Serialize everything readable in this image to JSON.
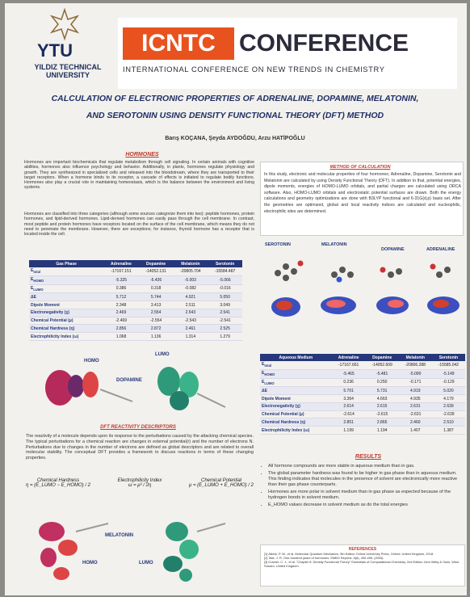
{
  "header": {
    "logo_text": "YTU",
    "university": "YILDIZ TECHNICAL UNIVERSITY",
    "conference_short": "ICNTC",
    "conference_word": "CONFERENCE",
    "conference_full": "INTERNATIONAL CONFERENCE ON NEW TRENDS IN CHEMISTRY"
  },
  "title": "CALCULATION OF ELECTRONIC PROPERTIES OF ADRENALINE, DOPAMINE, MELATONIN, AND SEROTONIN USING DENSITY FUNCTIONAL THEORY (DFT) METHOD",
  "authors": "Barış KOÇANA, Şeyda AYDOĞDU, Arzu HATİPOĞLU",
  "hormones": {
    "heading": "HORMONES",
    "paragraphs": [
      "Hormones are important biochemicals that regulate metabolism through cell signaling. In certain animals with cognitive abilities, hormones also influence psychology and behavior. Additionally, in plants, hormones regulate physiology and growth. They are synthesized in specialized cells and released into the bloodstream, where they are transported to their target receptors. When a hormone binds to its receptor, a cascade of effects is initiated to regulate bodily functions. Hormones also play a crucial role in maintaining homeostasis, which is the balance between the environment and living systems.",
      "Hormones are classified into three categories (although some sources categorize them into two): peptide hormones, protein hormones, and lipid-derived hormones. Lipid-derived hormones can easily pass through the cell membrane. In contrast, most peptide and protein hormones have receptors located on the surface of the cell membrane, which means they do not need to penetrate the membrane. However, there are exceptions; for instance, thyroid hormone has a receptor that is located inside the cell."
    ]
  },
  "method": {
    "heading": "METHOD OF CALCULATION",
    "text": "In this study, electronic and molecular properties of four hormones; Adrenaline, Dopamine, Serotonin and Melatonin are calculated by using Density Functional Theory (DFT). In addition to that, potential energies, dipole moments, energies of HOMO-LUMO orbitals, and partial charges are calculated using ORCA software. Also, HOMO-LUMO orbitals and electrostatic potential surfaces are drawn. Both the energy calculations and geometry optimizations are done with B3LYP functional and 6-31G(d,p) basis set. After the geometries are optimized, global and local reactivity indices are calculated and nucleophilic, electrophilic sites are determined."
  },
  "molecules": [
    "SEROTONIN",
    "MELATONIN",
    "DOPAMINE",
    "ADRENALINE"
  ],
  "gas_table": {
    "header": [
      "Gas Phase",
      "Adrenaline",
      "Dopamine",
      "Melatonin",
      "Serotonin"
    ],
    "rows": [
      {
        "label": "E",
        "sub": "total",
        "cells": [
          "-17167.151",
          "-14052.131",
          "-20805.704",
          "-15584.487"
        ]
      },
      {
        "label": "E",
        "sub": "HOMO",
        "cells": [
          "-5.325",
          "-5.426",
          "-5.003",
          "-5.066"
        ]
      },
      {
        "label": "E",
        "sub": "LUMO",
        "cells": [
          "0.386",
          "0.318",
          "-0.082",
          "-0.016"
        ]
      },
      {
        "label": "ΔE",
        "cells": [
          "5.712",
          "5.744",
          "4.921",
          "5.050"
        ]
      },
      {
        "label": "Dipole Moment",
        "cells": [
          "2.348",
          "3.413",
          "2.511",
          "3.049"
        ]
      },
      {
        "label": "Electronegativity (χ)",
        "cells": [
          "2.469",
          "2.554",
          "2.543",
          "2.541"
        ]
      },
      {
        "label": "Chemical Potential (μ)",
        "cells": [
          "-2.469",
          "-2.554",
          "-2.543",
          "-2.541"
        ]
      },
      {
        "label": "Chemical Hardness (η)",
        "cells": [
          "2.856",
          "2.872",
          "2.461",
          "2.525"
        ]
      },
      {
        "label": "Electrophilicity Index (ω)",
        "cells": [
          "1.068",
          "1.136",
          "1.314",
          "1.279"
        ]
      }
    ]
  },
  "aqueous_table": {
    "header": [
      "Aqueous Medium",
      "Adrenaline",
      "Dopamine",
      "Melatonin",
      "Serotonin"
    ],
    "rows": [
      {
        "label": "E",
        "sub": "total",
        "cells": [
          "-17167.661",
          "-14052.609",
          "-20806.288",
          "-15585.042"
        ]
      },
      {
        "label": "E",
        "sub": "HOMO",
        "cells": [
          "-5.465",
          "-5.481",
          "-5.090",
          "-5.149"
        ]
      },
      {
        "label": "E",
        "sub": "LUMO",
        "cells": [
          "0.236",
          "0.250",
          "-0.171",
          "-0.129"
        ]
      },
      {
        "label": "ΔE",
        "cells": [
          "5.701",
          "5.731",
          "4.919",
          "5.020"
        ]
      },
      {
        "label": "Dipole Moment",
        "cells": [
          "3.364",
          "4.663",
          "4.935",
          "4.179"
        ]
      },
      {
        "label": "Electronegativity (χ)",
        "cells": [
          "2.614",
          "2.615",
          "2.631",
          "2.639"
        ]
      },
      {
        "label": "Chemical Potential (μ)",
        "cells": [
          "-2.614",
          "-2.615",
          "-2.631",
          "-2.639"
        ]
      },
      {
        "label": "Chemical Hardness (η)",
        "cells": [
          "2.851",
          "2.865",
          "2.460",
          "2.510"
        ]
      },
      {
        "label": "Electrophilicity Index (ω)",
        "cells": [
          "1.199",
          "1.194",
          "1.407",
          "1.387"
        ]
      }
    ]
  },
  "orbitals_top": {
    "homo": "HOMO",
    "molecule": "DOPAMINE",
    "lumo": "LUMO"
  },
  "orbitals_bottom": {
    "homo": "HOMO",
    "molecule": "MELATONIN",
    "lumo": "LUMO"
  },
  "dft": {
    "heading": "DFT REACTIVITY DESCRIPTORS",
    "text": "The reactivity of a molecule depends upon its response to the perturbations caused by the attacking chemical species. The typical perturbations for a chemical reaction are changes in external potential(r) and the number of electrons N. Perturbations due to changes in the number of electrons are defined as global descriptors and are related to overall molecular stability. The conceptual DFT provides a framework to discuss reactions in terms of these changing properties.",
    "formulas": [
      {
        "name": "Chemical Hardness",
        "formula": "η = (E_LUMO − E_HOMO) / 2"
      },
      {
        "name": "Electrophilicity Index",
        "formula": "ω = μ² / 2η"
      },
      {
        "name": "Chemical Potential",
        "formula": "μ = (E_LUMO + E_HOMO) / 2"
      }
    ]
  },
  "results": {
    "heading": "RESULTS",
    "bullets": [
      "All hormone compounds are more stable in aqueous medium than in gas.",
      "The global parameter hardness was found to be higher in gas phase than in aqueous medium. This finding indicates that molecules in the presence of solvent are electronically more reactive than their gas phase counterparts.",
      "Hormones are more polar in solvent medium than in gas phase as expected because of the hydrogen bonds in solvent medium.",
      "E_HOMO values decrease in solvent medium as do the total energies"
    ]
  },
  "references": {
    "heading": "REFERENCES",
    "items": [
      "[1] Atkins, P. W., et al. Molecular Quantum Mechanics. 5th Edition Oxford University Press, Oxford, United Kingdom, 2018.",
      "[2] Tate, J. R. One-hundred years of hormones. EMBO Reports, 6(6), 490-496. (2005).",
      "[3] Cramer, C. J., et al. \"Chapter 8: Density Functional Theory\" Essentials of Computational Chemistry, 2nd Edition John Wiley & Sons, West Sussex, United Kingdom."
    ]
  }
}
